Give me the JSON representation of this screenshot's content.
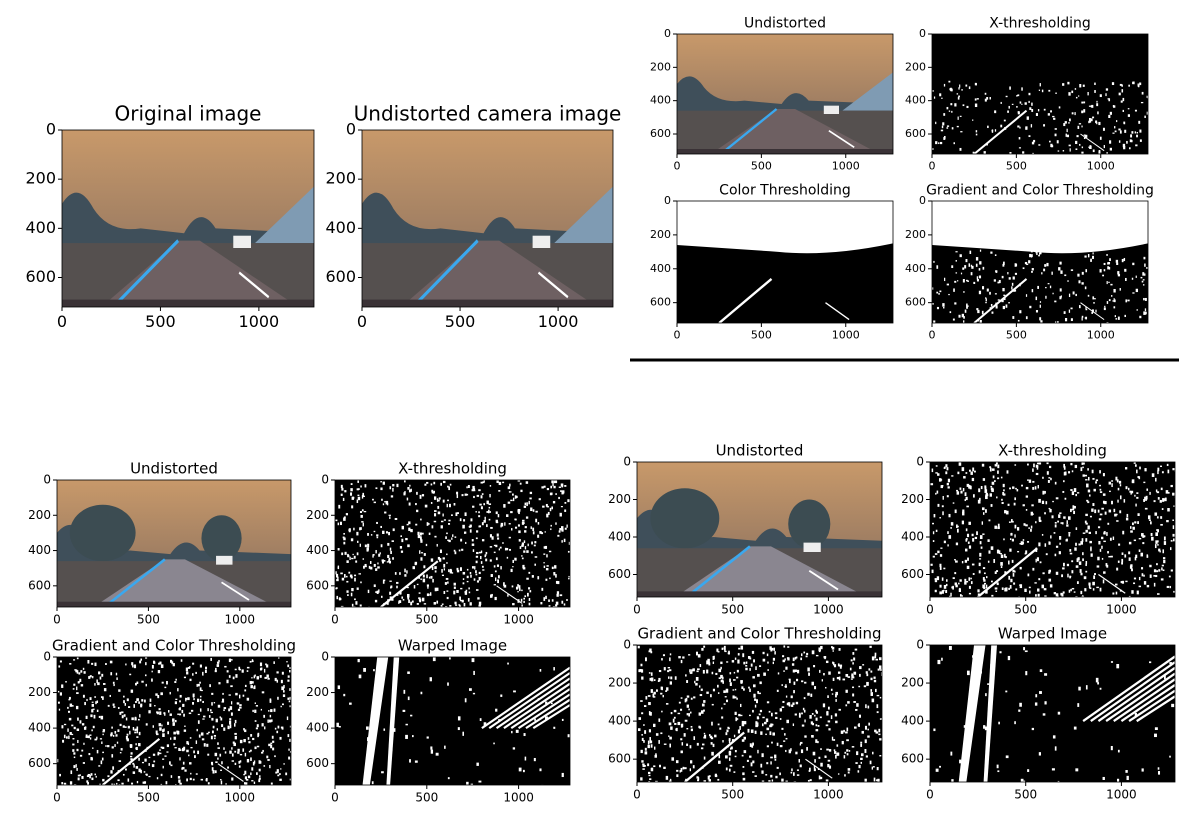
{
  "groups": [
    {
      "panels": [
        {
          "title": "Original image",
          "xticks": [
            0,
            500,
            1000
          ],
          "yticks": [
            0,
            200,
            400,
            600
          ],
          "xlim": [
            0,
            1280
          ],
          "ylim": [
            720,
            0
          ]
        },
        {
          "title": "Undistorted camera image",
          "xticks": [
            0,
            500,
            1000
          ],
          "yticks": [
            0,
            200,
            400,
            600
          ],
          "xlim": [
            0,
            1280
          ],
          "ylim": [
            720,
            0
          ]
        }
      ]
    },
    {
      "panels": [
        {
          "title": "Undistorted",
          "xticks": [
            0,
            500,
            1000
          ],
          "yticks": [
            0,
            200,
            400,
            600
          ],
          "xlim": [
            0,
            1280
          ],
          "ylim": [
            720,
            0
          ]
        },
        {
          "title": "X-thresholding",
          "xticks": [
            0,
            500,
            1000
          ],
          "yticks": [
            0,
            200,
            400,
            600
          ],
          "xlim": [
            0,
            1280
          ],
          "ylim": [
            720,
            0
          ]
        },
        {
          "title": "Color Thresholding",
          "xticks": [
            0,
            500,
            1000
          ],
          "yticks": [
            0,
            200,
            400,
            600
          ],
          "xlim": [
            0,
            1280
          ],
          "ylim": [
            720,
            0
          ]
        },
        {
          "title": "Gradient and Color Thresholding",
          "xticks": [
            0,
            500,
            1000
          ],
          "yticks": [
            0,
            200,
            400,
            600
          ],
          "xlim": [
            0,
            1280
          ],
          "ylim": [
            720,
            0
          ]
        }
      ]
    },
    {
      "panels": [
        {
          "title": "Undistorted",
          "xticks": [
            0,
            500,
            1000
          ],
          "yticks": [
            0,
            200,
            400,
            600
          ],
          "xlim": [
            0,
            1280
          ],
          "ylim": [
            720,
            0
          ]
        },
        {
          "title": "X-thresholding",
          "xticks": [
            0,
            500,
            1000
          ],
          "yticks": [
            0,
            200,
            400,
            600
          ],
          "xlim": [
            0,
            1280
          ],
          "ylim": [
            720,
            0
          ]
        },
        {
          "title": "Gradient and Color Thresholding",
          "xticks": [
            0,
            500,
            1000
          ],
          "yticks": [
            0,
            200,
            400,
            600
          ],
          "xlim": [
            0,
            1280
          ],
          "ylim": [
            720,
            0
          ]
        },
        {
          "title": "Warped Image",
          "xticks": [
            0,
            500,
            1000
          ],
          "yticks": [
            0,
            200,
            400,
            600
          ],
          "xlim": [
            0,
            1280
          ],
          "ylim": [
            720,
            0
          ]
        }
      ]
    },
    {
      "panels": [
        {
          "title": "Undistorted",
          "xticks": [
            0,
            500,
            1000
          ],
          "yticks": [
            0,
            200,
            400,
            600
          ],
          "xlim": [
            0,
            1280
          ],
          "ylim": [
            720,
            0
          ]
        },
        {
          "title": "X-thresholding",
          "xticks": [
            0,
            500,
            1000
          ],
          "yticks": [
            0,
            200,
            400,
            600
          ],
          "xlim": [
            0,
            1280
          ],
          "ylim": [
            720,
            0
          ]
        },
        {
          "title": "Gradient and Color Thresholding",
          "xticks": [
            0,
            500,
            1000
          ],
          "yticks": [
            0,
            200,
            400,
            600
          ],
          "xlim": [
            0,
            1280
          ],
          "ylim": [
            720,
            0
          ]
        },
        {
          "title": "Warped Image",
          "xticks": [
            0,
            500,
            1000
          ],
          "yticks": [
            0,
            200,
            400,
            600
          ],
          "xlim": [
            0,
            1280
          ],
          "ylim": [
            720,
            0
          ]
        }
      ]
    }
  ]
}
